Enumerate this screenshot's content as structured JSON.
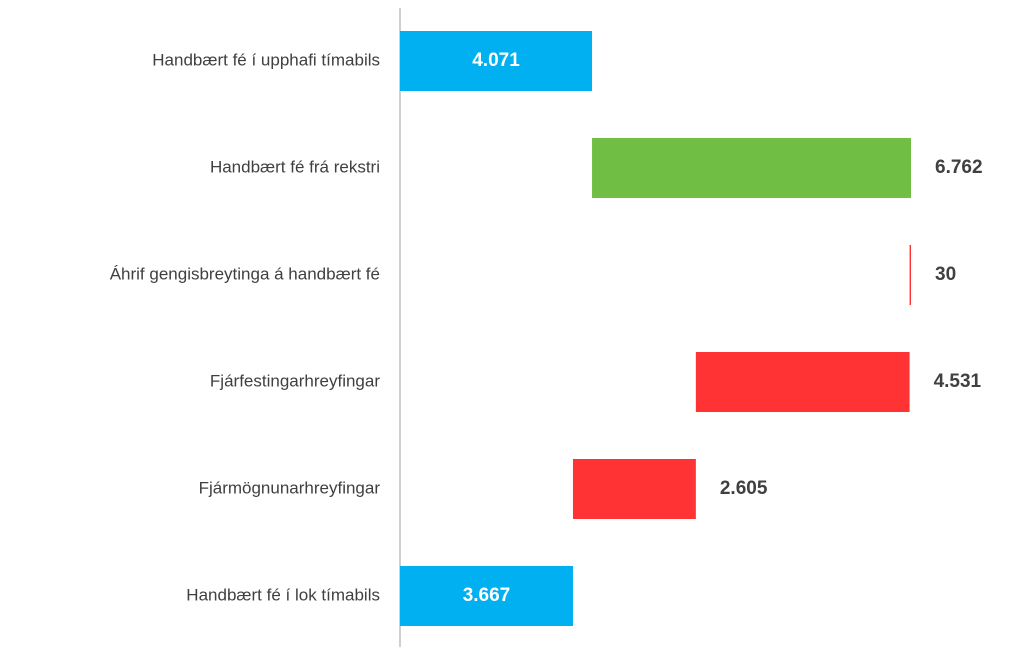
{
  "chart_data": {
    "type": "waterfall",
    "categories": [
      "Handbært fé í upphafi tímabils",
      "Handbært fé frá rekstri",
      "Áhrif gengisbreytinga á handbært fé",
      "Fjárfestingarhreyfingar",
      "Fjármögnunarhreyfingar",
      "Handbært fé í lok tímabils"
    ],
    "values": [
      4071,
      6762,
      -30,
      -4531,
      -2605,
      3667
    ],
    "value_labels": [
      "4.071",
      "6.762",
      "30",
      "4.531",
      "2.605",
      "3.667"
    ],
    "totals": [
      true,
      false,
      false,
      false,
      false,
      true
    ],
    "colors": [
      "#00b0f0",
      "#70bf44",
      "#ff3333",
      "#ff3333",
      "#ff3333",
      "#00b0f0"
    ]
  }
}
